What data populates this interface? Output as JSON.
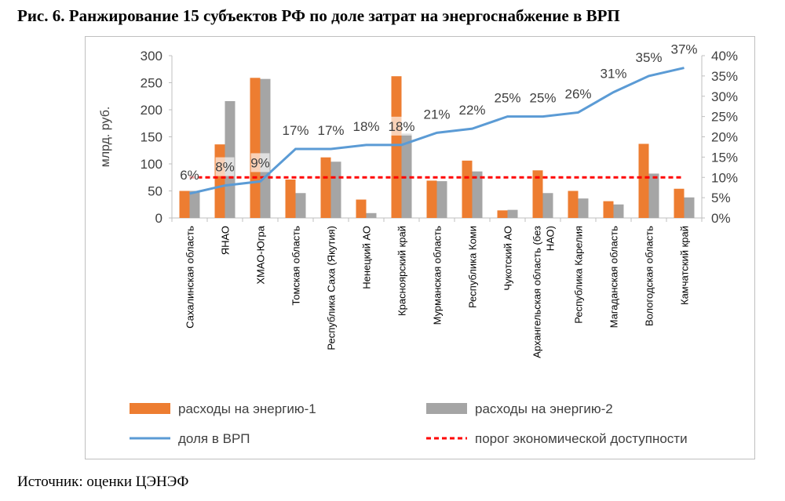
{
  "figure": {
    "title": "Рис. 6. Ранжирование 15 субъектов РФ по доле затрат на энергоснабжение в ВРП",
    "source": "Источник: оценки ЦЭНЭФ"
  },
  "chart_data": {
    "type": "bar",
    "ylabel": "млрд. руб.",
    "ylim": [
      0,
      300
    ],
    "y_ticks": [
      "0",
      "50",
      "100",
      "150",
      "200",
      "250",
      "300"
    ],
    "y2lim": [
      0,
      40
    ],
    "y2_ticks": [
      "0%",
      "5%",
      "10%",
      "15%",
      "20%",
      "25%",
      "30%",
      "35%",
      "40%"
    ],
    "grid": false,
    "legend_position": "bottom",
    "categories": [
      "Сахалинская область",
      "ЯНАО",
      "ХМАО-Югра",
      "Томская область",
      "Республика Саха (Якутия)",
      "Ненецкий АО",
      "Красноярский край",
      "Мурманская область",
      "Республика Коми",
      "Чукотский АО",
      "Архангельская область (без НАО)",
      "Республика Карелия",
      "Магаданская область",
      "Вологодская область",
      "Камчатский край"
    ],
    "series": [
      {
        "name": "расходы на энергию-1",
        "type": "bar",
        "axis": "left",
        "color": "#ed7d31",
        "values": [
          50,
          136,
          259,
          71,
          112,
          34,
          262,
          69,
          106,
          14,
          88,
          50,
          31,
          137,
          54
        ]
      },
      {
        "name": "расходы на энергию-2",
        "type": "bar",
        "axis": "left",
        "color": "#a5a5a5",
        "values": [
          50,
          216,
          257,
          46,
          104,
          9,
          156,
          68,
          86,
          15,
          46,
          36,
          25,
          82,
          38
        ]
      },
      {
        "name": "доля в ВРП",
        "type": "line",
        "axis": "right",
        "color": "#5b9bd5",
        "values": [
          6,
          8,
          9,
          17,
          17,
          18,
          18,
          21,
          22,
          25,
          25,
          26,
          31,
          35,
          37
        ],
        "labels": [
          "6%",
          "8%",
          "9%",
          "17%",
          "17%",
          "18%",
          "18%",
          "21%",
          "22%",
          "25%",
          "25%",
          "26%",
          "31%",
          "35%",
          "37%"
        ]
      },
      {
        "name": "порог экономической доступности",
        "type": "line",
        "style": "dashed",
        "axis": "right",
        "color": "#ff0000",
        "values": [
          10,
          10,
          10,
          10,
          10,
          10,
          10,
          10,
          10,
          10,
          10,
          10,
          10,
          10,
          10
        ]
      }
    ]
  }
}
